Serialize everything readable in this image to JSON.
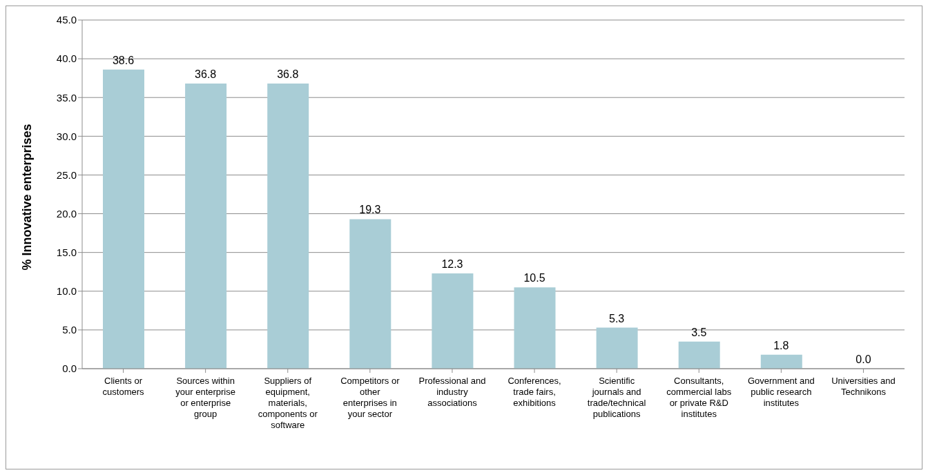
{
  "chart_data": {
    "type": "bar",
    "ylabel": "% Innovative enterprises",
    "categories": [
      "Clients or customers",
      "Sources within your enterprise or enterprise group",
      "Suppliers of equipment, materials, components or software",
      "Competitors or other enterprises in your sector",
      "Professional and industry associations",
      "Conferences, trade fairs, exhibitions",
      "Scientific journals and trade/technical publications",
      "Consultants, commercial labs or private R&D institutes",
      "Government and public research institutes",
      "Universities and Technikons"
    ],
    "values": [
      38.6,
      36.8,
      36.8,
      19.3,
      12.3,
      10.5,
      5.3,
      3.5,
      1.8,
      0.0
    ],
    "value_labels": [
      "38.6",
      "36.8",
      "36.8",
      "19.3",
      "12.3",
      "10.5",
      "5.3",
      "3.5",
      "1.8",
      "0.0"
    ],
    "color": "#a9cdd6",
    "ylim": [
      0,
      45
    ],
    "yticks": [
      {
        "value": 0,
        "label": "0.0"
      },
      {
        "value": 5,
        "label": "5.0"
      },
      {
        "value": 10,
        "label": "10.0"
      },
      {
        "value": 15,
        "label": "15.0"
      },
      {
        "value": 20,
        "label": "20.0"
      },
      {
        "value": 25,
        "label": "25.0"
      },
      {
        "value": 30,
        "label": "30.0"
      },
      {
        "value": 35,
        "label": "35.0"
      },
      {
        "value": 40,
        "label": "40.0"
      },
      {
        "value": 45,
        "label": "45.0"
      }
    ],
    "grid": "y"
  }
}
